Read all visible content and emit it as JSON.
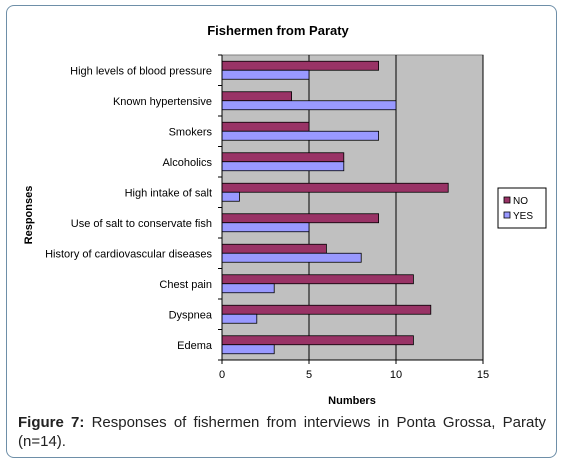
{
  "chart_data": {
    "type": "bar",
    "orientation": "horizontal",
    "title": "Fishermen from Paraty",
    "xlabel": "Numbers",
    "ylabel": "Responses",
    "xlim": [
      0,
      15
    ],
    "xticks": [
      0,
      5,
      10,
      15
    ],
    "grid": true,
    "legend_position": "right",
    "categories": [
      "High levels of blood pressure",
      "Known hypertensive",
      "Smokers",
      "Alcoholics",
      "High intake of salt",
      "Use of salt to conservate fish",
      "History of cardiovascular diseases",
      "Chest pain",
      "Dyspnea",
      "Edema"
    ],
    "series": [
      {
        "name": "NO",
        "color": "#993366",
        "values": [
          9,
          4,
          5,
          7,
          13,
          9,
          6,
          11,
          12,
          11
        ]
      },
      {
        "name": "YES",
        "color": "#9999ff",
        "values": [
          5,
          10,
          9,
          7,
          1,
          5,
          8,
          3,
          2,
          3
        ]
      }
    ],
    "plot_background": "#c0c0c0"
  },
  "caption": {
    "label": "Figure 7:",
    "text": " Responses of fishermen from interviews in Ponta Grossa, Paraty (n=14)."
  }
}
